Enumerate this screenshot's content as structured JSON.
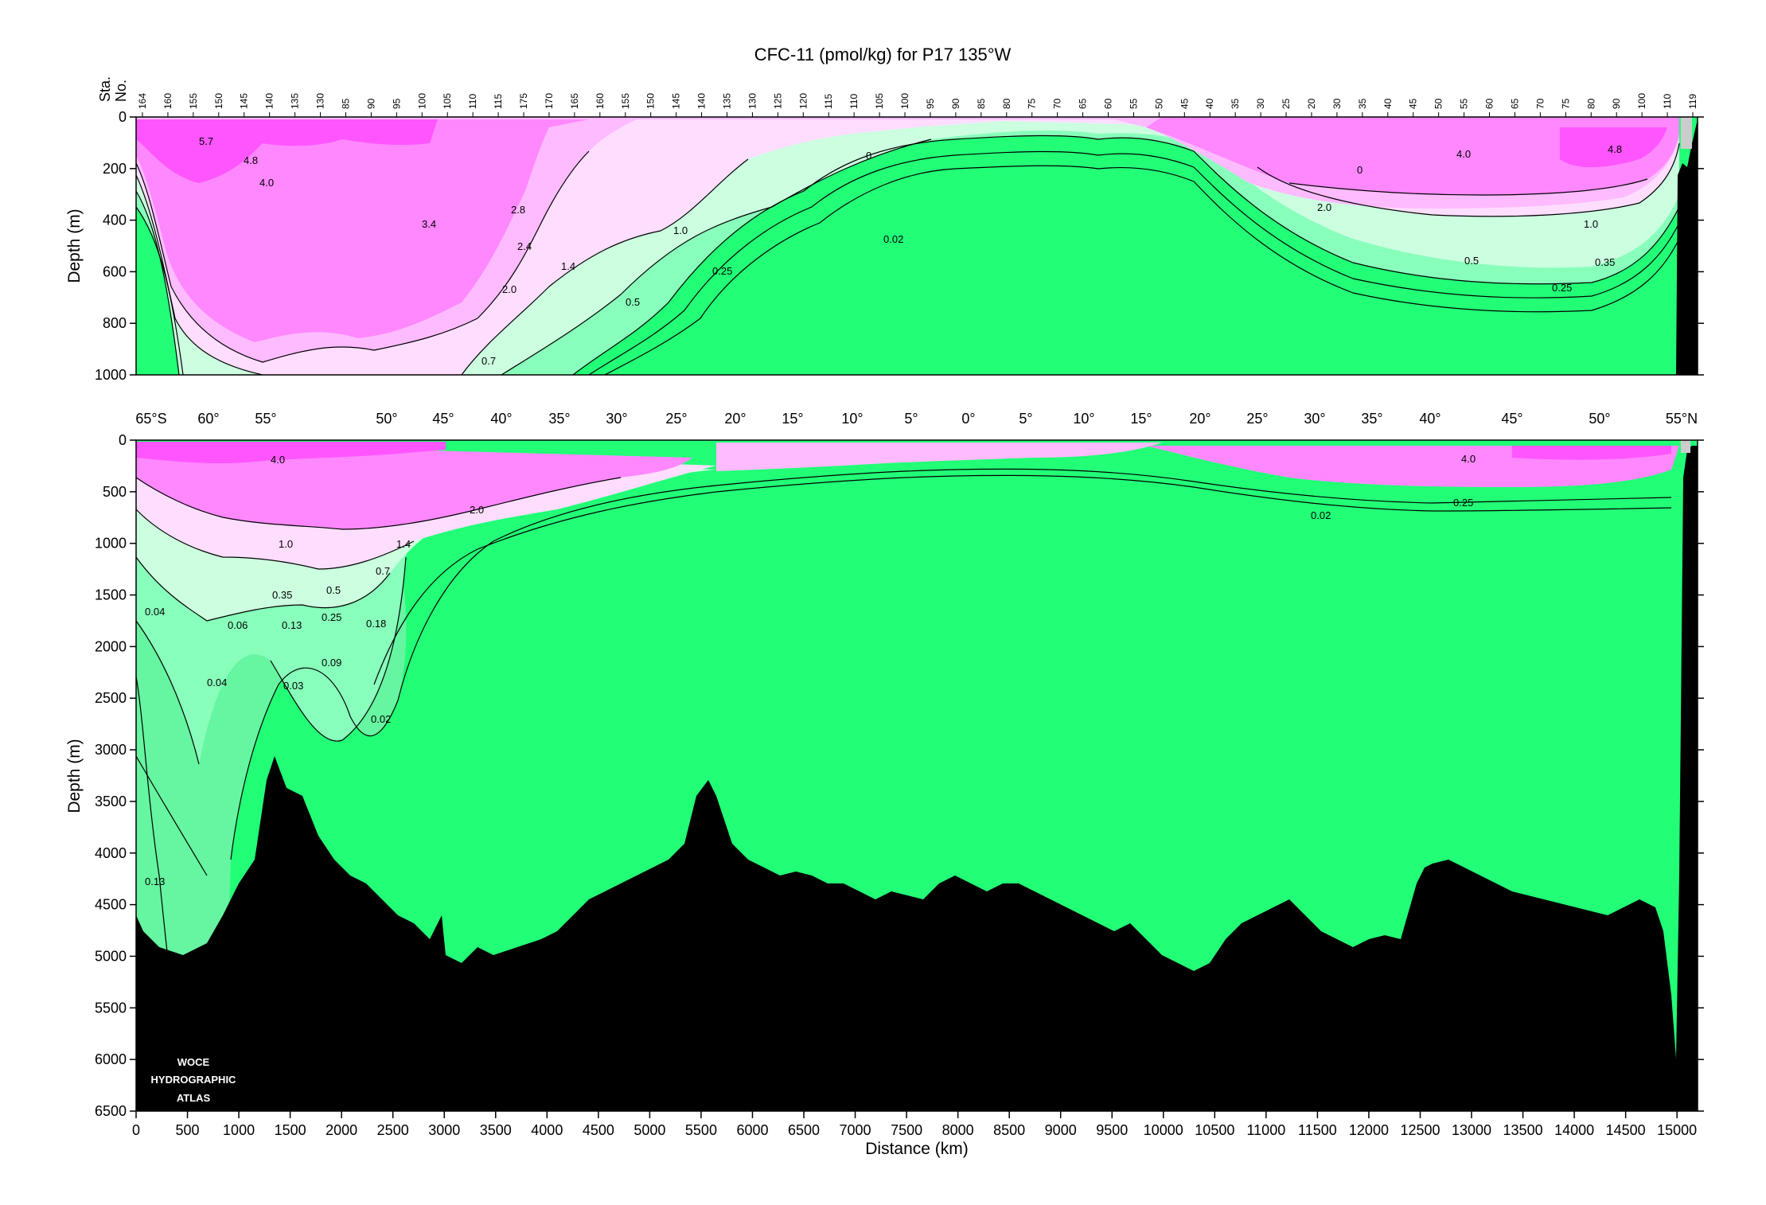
{
  "title": "CFC-11 (pmol/kg) for P17 135°W",
  "station_axis_label": [
    "Sta.",
    "No."
  ],
  "colors": {
    "high": "#ff55ff",
    "mid_high": "#ff88ff",
    "mid": "#ffbbff",
    "low_pink": "#ffddff",
    "pale_green": "#ccffe0",
    "light_green": "#88ffbb",
    "green": "#44ee99",
    "base_green": "#22ff77",
    "bottom": "#000000",
    "shelf": "#cccccc"
  },
  "chart_data": [
    {
      "type": "section",
      "panel": "upper",
      "xlabel": "",
      "ylabel": "Depth (m)",
      "xlim": [
        0,
        15200
      ],
      "ylim": [
        1000,
        0
      ],
      "yticks": [
        0,
        200,
        400,
        600,
        800,
        1000
      ],
      "station_numbers": [
        "164",
        "160",
        "155",
        "150",
        "145",
        "140",
        "135",
        "130",
        "85",
        "90",
        "95",
        "100",
        "105",
        "110",
        "115",
        "175",
        "170",
        "165",
        "160",
        "155",
        "150",
        "145",
        "140",
        "135",
        "130",
        "125",
        "120",
        "115",
        "110",
        "105",
        "100",
        "95",
        "90",
        "85",
        "80",
        "75",
        "70",
        "65",
        "60",
        "55",
        "50",
        "45",
        "40",
        "35",
        "30",
        "25",
        "20",
        "30",
        "35",
        "40",
        "45",
        "50",
        "55",
        "60",
        "65",
        "70",
        "75",
        "80",
        "90",
        "100",
        "110",
        "119"
      ],
      "contour_labels": [
        "5.7",
        "4.8",
        "4.0",
        "3.4",
        "2.8",
        "2.4",
        "2.0",
        "1.4",
        "1.0",
        "0.7",
        "0.5",
        "0.25",
        "0.02",
        "0",
        "2.0",
        "1.0",
        "0.5",
        "0.35",
        "0.25",
        "4.0",
        "4.8",
        "0"
      ]
    },
    {
      "type": "section",
      "panel": "lower",
      "xlabel": "Distance (km)",
      "ylabel": "Depth (m)",
      "xlim": [
        0,
        15200
      ],
      "ylim": [
        6500,
        0
      ],
      "xticks": [
        0,
        500,
        1000,
        1500,
        2000,
        2500,
        3000,
        3500,
        4000,
        4500,
        5000,
        5500,
        6000,
        6500,
        7000,
        7500,
        8000,
        8500,
        9000,
        9500,
        10000,
        10500,
        11000,
        11500,
        12000,
        12500,
        13000,
        13500,
        14000,
        14500,
        15000
      ],
      "yticks": [
        0,
        500,
        1000,
        1500,
        2000,
        2500,
        3000,
        3500,
        4000,
        4500,
        5000,
        5500,
        6000,
        6500
      ],
      "latitude_labels": [
        "65°S",
        "60°",
        "55°",
        "50°",
        "45°",
        "40°",
        "35°",
        "30°",
        "25°",
        "20°",
        "15°",
        "10°",
        "5°",
        "0°",
        "5°",
        "10°",
        "15°",
        "20°",
        "25°",
        "30°",
        "35°",
        "40°",
        "45°",
        "50°",
        "55°N"
      ],
      "contour_labels": [
        "4.0",
        "2.0",
        "1.4",
        "1.0",
        "0.7",
        "0.5",
        "0.35",
        "0.25",
        "0.18",
        "0.13",
        "0.09",
        "0.06",
        "0.04",
        "0.04",
        "0.03",
        "0.02",
        "0.13",
        "4.0",
        "0.25",
        "0.02"
      ],
      "logo": [
        "WOCE",
        "HYDROGRAPHIC",
        "ATLAS"
      ]
    }
  ]
}
